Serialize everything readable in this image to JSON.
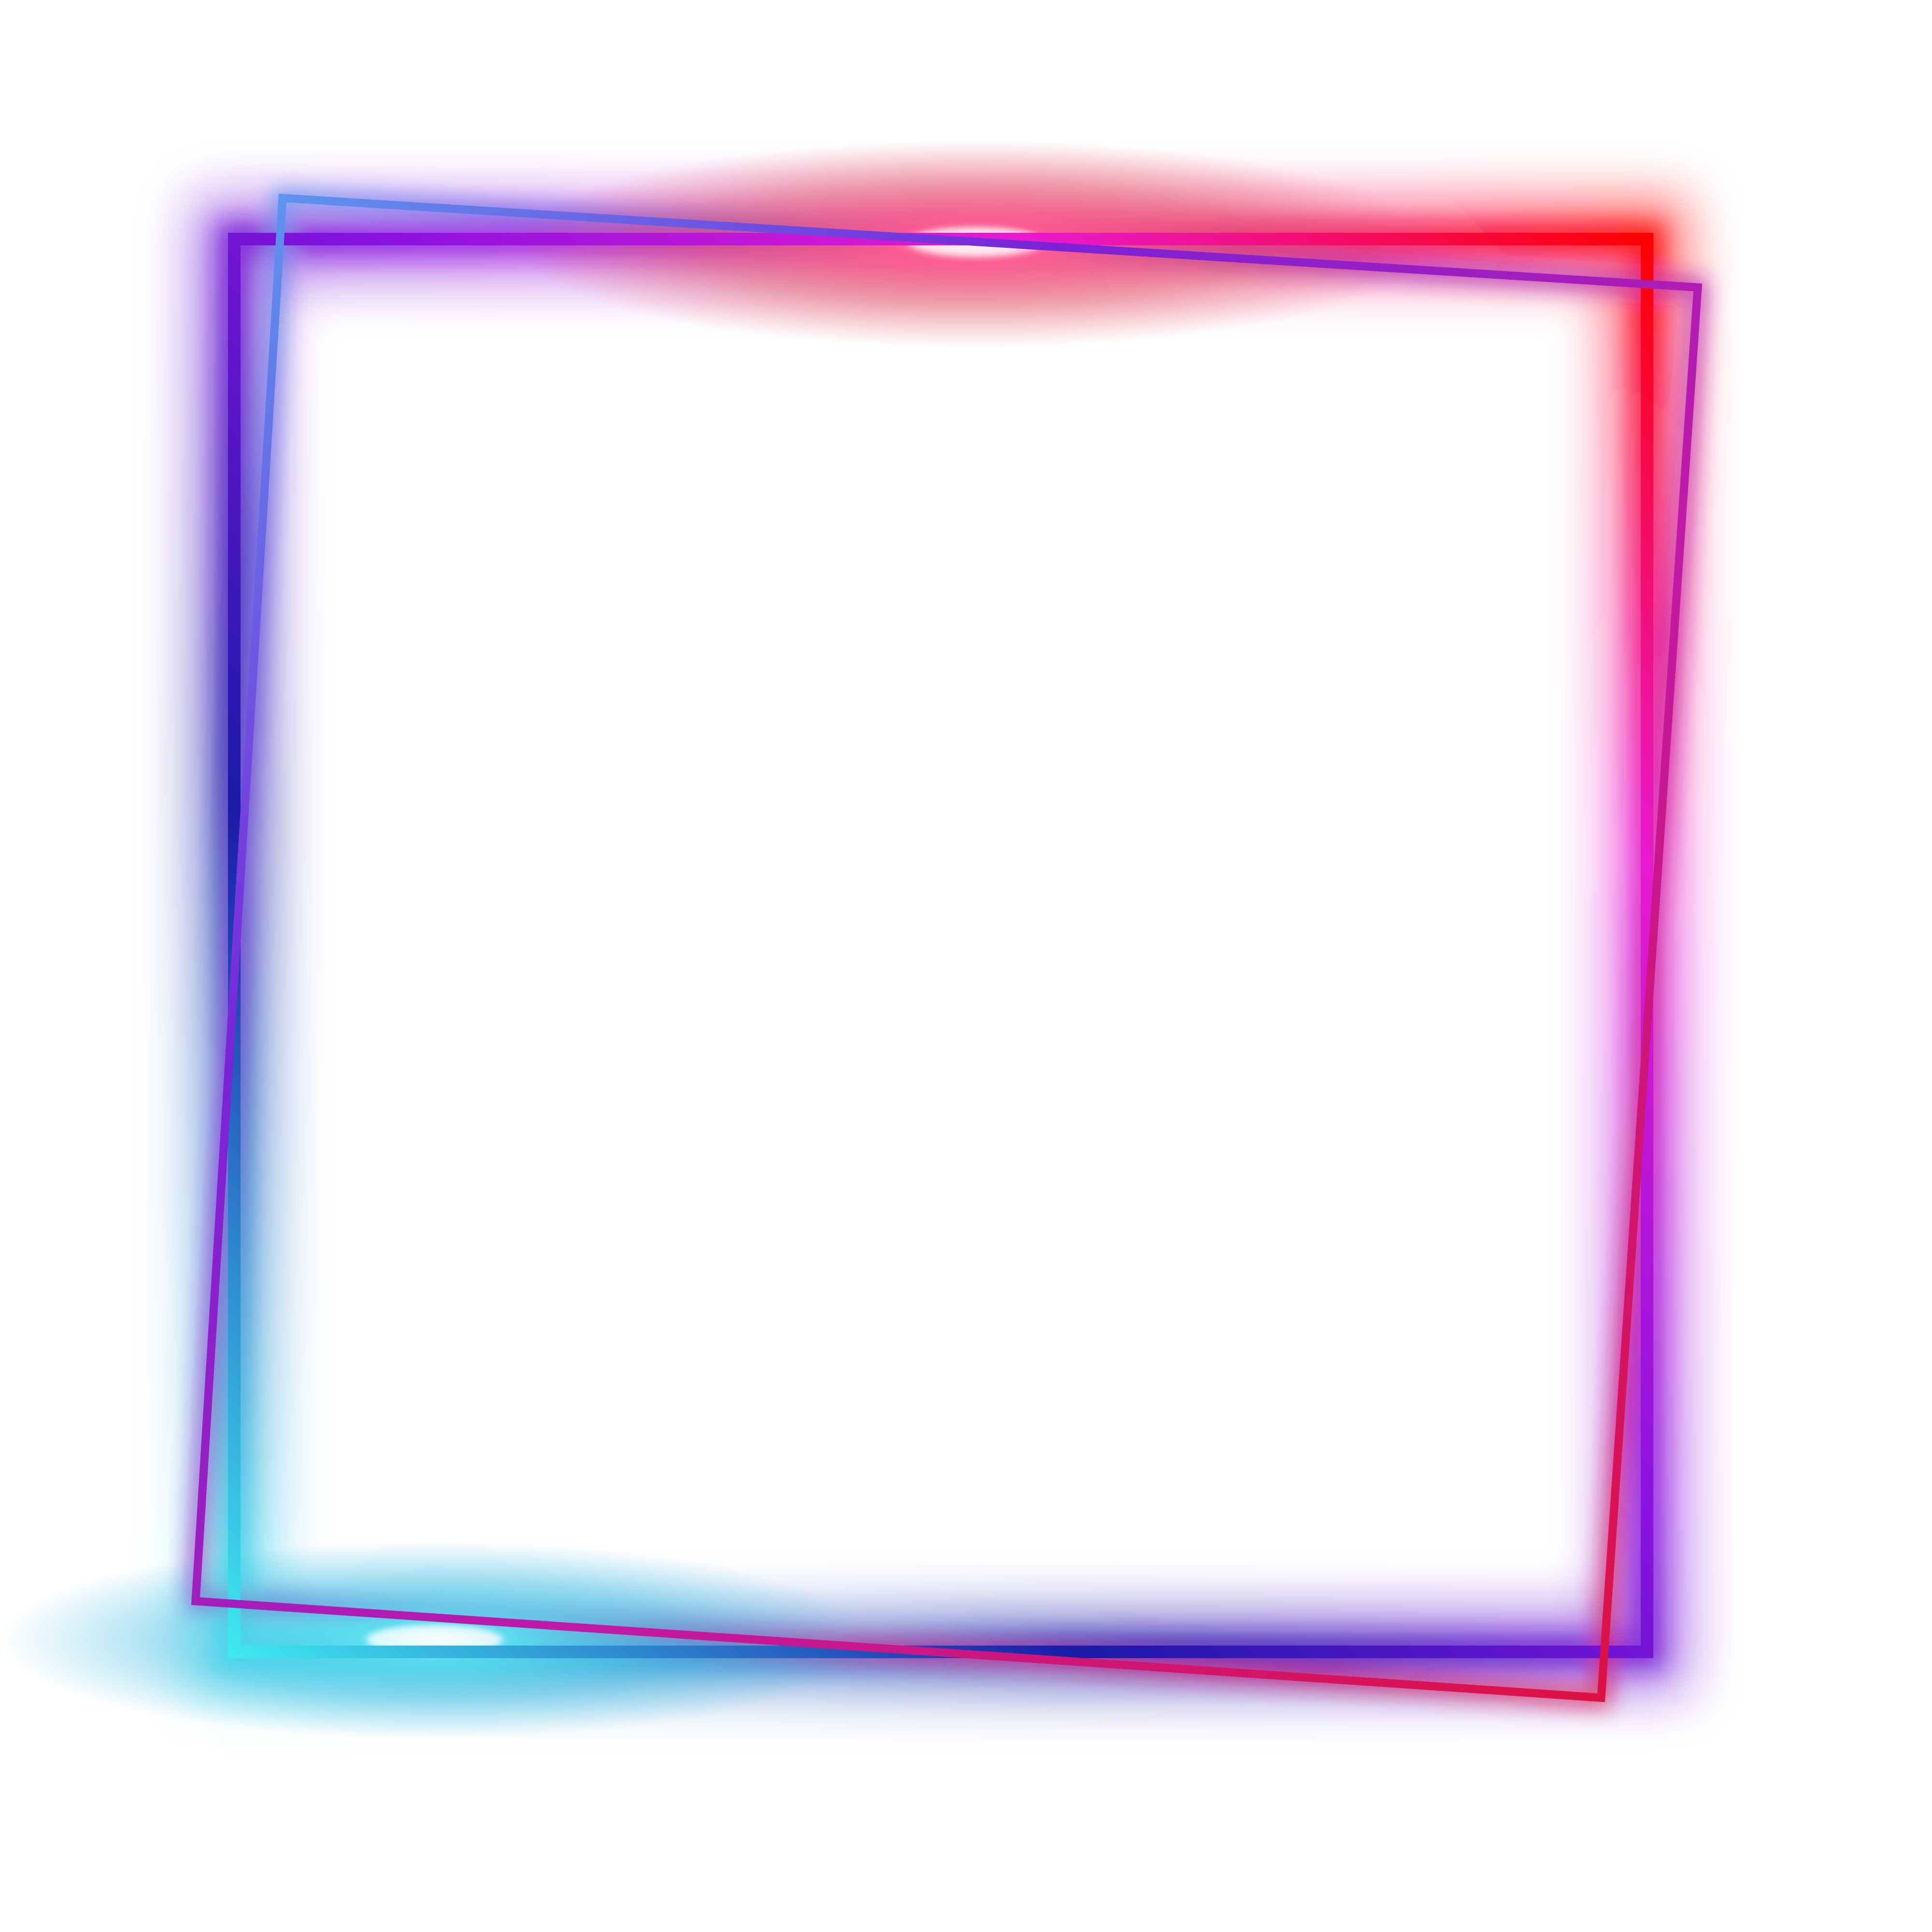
{
  "artwork": {
    "background": "#ffffff",
    "palette": {
      "cyan": "#3ee8f0",
      "blue": "#1a1aa8",
      "violet": "#8a12e0",
      "magenta": "#e81ad0",
      "hot_pink": "#ff2aa0",
      "red": "#ff0000",
      "glow_red": "#e04040",
      "glow_cyan": "#33c8e6"
    },
    "frames": [
      {
        "name": "upright-frame",
        "style": "neon gradient outline"
      },
      {
        "name": "tilted-frame",
        "style": "neon gradient outline"
      }
    ]
  }
}
